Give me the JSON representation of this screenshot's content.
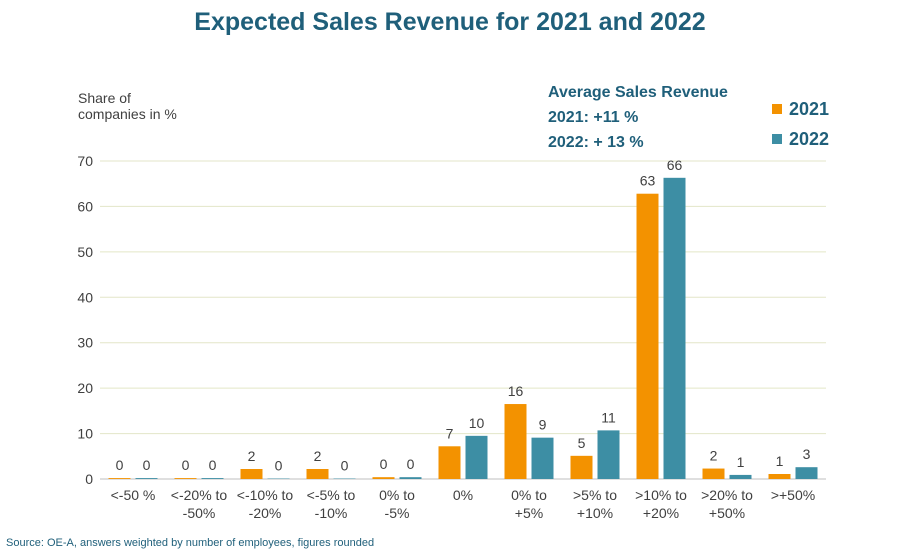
{
  "colors": {
    "series_2021": "#f39200",
    "series_2022": "#3d8ea4",
    "title": "#1f5f7a",
    "grid": "#e3e6c8"
  },
  "chart_data": {
    "type": "bar",
    "title": "Expected Sales Revenue for 2021 and 2022",
    "ylabel_lines": [
      "Share of",
      "companies in %"
    ],
    "xlabel": "",
    "ylim": [
      0,
      70
    ],
    "yticks": [
      "0",
      "10",
      "20",
      "30",
      "40",
      "50",
      "60",
      "70"
    ],
    "grid": true,
    "legend_position": "top-right",
    "categories": [
      [
        "<-50 %"
      ],
      [
        "<-20% to",
        "-50%"
      ],
      [
        "<-10% to",
        "-20%"
      ],
      [
        "<-5% to",
        "-10%"
      ],
      [
        "0% to",
        "-5%"
      ],
      [
        "0%"
      ],
      [
        "0% to",
        "+5%"
      ],
      [
        ">5% to",
        "+10%"
      ],
      [
        ">10% to",
        "+20%"
      ],
      [
        ">20% to",
        "+50%"
      ],
      [
        ">+50%"
      ]
    ],
    "series": [
      {
        "name": "2021",
        "values": [
          0,
          0,
          2,
          2,
          0,
          7,
          16,
          5,
          63,
          2,
          1
        ],
        "plot_values": [
          0.2,
          0.2,
          2.2,
          2.2,
          0.4,
          7.2,
          16.5,
          5.1,
          62.8,
          2.3,
          1.1
        ]
      },
      {
        "name": "2022",
        "values": [
          0,
          0,
          0,
          0,
          0,
          10,
          9,
          11,
          66,
          1,
          3
        ],
        "plot_values": [
          0.2,
          0.2,
          0.1,
          0.1,
          0.4,
          9.5,
          9.1,
          10.7,
          66.3,
          0.9,
          2.6
        ]
      }
    ],
    "annotation": {
      "heading": "Average Sales Revenue",
      "line_2021": "2021: +11 %",
      "line_2022": "2022: + 13 %"
    }
  },
  "source_note": "Source: OE-A, answers weighted by number of employees, figures rounded"
}
